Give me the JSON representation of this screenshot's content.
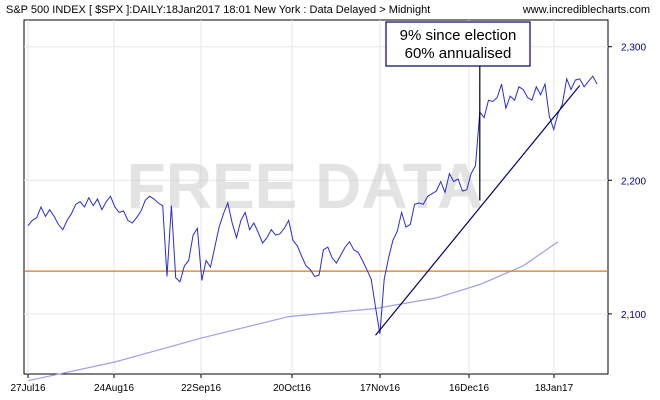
{
  "header": {
    "left": "S&P 500 INDEX [ $SPX ]:DAILY:18Jan2017 18:01 New York : Data Delayed > Midnight",
    "right": "www.incrediblecharts.com"
  },
  "watermark": "FREE DATA",
  "colors": {
    "price": "#2b2bd0",
    "moving_average": "#9f9fe8",
    "support": "#d4781e",
    "trendline": "#000066",
    "annotation_border": "#000066",
    "y_tick_text": "#000080"
  },
  "chart_data": {
    "type": "line",
    "title": "S&P 500 INDEX [ $SPX ]:DAILY:18Jan2017 18:01 New York : Data Delayed > Midnight",
    "xlabel": "",
    "ylabel": "",
    "x_ticks": [
      "27Jul16",
      "24Aug16",
      "22Sep16",
      "20Oct16",
      "17Nov16",
      "16Dec16",
      "18Jan17"
    ],
    "y_ticks": [
      2100,
      2200,
      2300
    ],
    "ylim": [
      2055,
      2320
    ],
    "grid": true,
    "x_range_trading_days": [
      0,
      122
    ],
    "series": [
      {
        "role": "price",
        "values": [
          2166,
          2170,
          2172,
          2180,
          2173,
          2178,
          2173,
          2167,
          2163,
          2170,
          2175,
          2182,
          2184,
          2180,
          2187,
          2181,
          2186,
          2178,
          2184,
          2188,
          2180,
          2176,
          2177,
          2170,
          2168,
          2172,
          2177,
          2185,
          2188,
          2186,
          2183,
          2181,
          2128,
          2181,
          2127,
          2124,
          2136,
          2140,
          2159,
          2164,
          2125,
          2140,
          2135,
          2150,
          2165,
          2175,
          2183,
          2168,
          2157,
          2170,
          2176,
          2163,
          2168,
          2161,
          2153,
          2157,
          2163,
          2159,
          2160,
          2164,
          2170,
          2155,
          2151,
          2143,
          2136,
          2133,
          2128,
          2129,
          2148,
          2150,
          2142,
          2138,
          2144,
          2150,
          2154,
          2148,
          2146,
          2140,
          2133,
          2126,
          2105,
          2085,
          2126,
          2142,
          2155,
          2162,
          2176,
          2165,
          2167,
          2182,
          2183,
          2182,
          2188,
          2190,
          2192,
          2199,
          2191,
          2205,
          2199,
          2201,
          2192,
          2193,
          2205,
          2211,
          2251,
          2247,
          2260,
          2259,
          2262,
          2272,
          2254,
          2263,
          2260,
          2270,
          2268,
          2262,
          2260,
          2270,
          2264,
          2272,
          2248,
          2238,
          2250,
          2257,
          2276,
          2268,
          2275,
          2276,
          2270,
          2274,
          2278,
          2272
        ]
      },
      {
        "role": "moving_average",
        "points": [
          [
            0,
            2050
          ],
          [
            20,
            2064
          ],
          [
            40,
            2082
          ],
          [
            60,
            2098
          ],
          [
            80,
            2104
          ],
          [
            94,
            2112
          ],
          [
            104,
            2122
          ],
          [
            114,
            2136
          ],
          [
            122,
            2154
          ]
        ]
      },
      {
        "role": "support",
        "y": 2132
      },
      {
        "role": "trendline",
        "points": [
          [
            80,
            2084
          ],
          [
            127,
            2271
          ]
        ]
      },
      {
        "role": "event_marker",
        "x": 104,
        "y_range": [
          2185,
          2275
        ]
      }
    ],
    "annotations": [
      {
        "text_lines": [
          "9% since election",
          "60% annualised"
        ],
        "anchor": "top",
        "x": 104
      }
    ]
  }
}
